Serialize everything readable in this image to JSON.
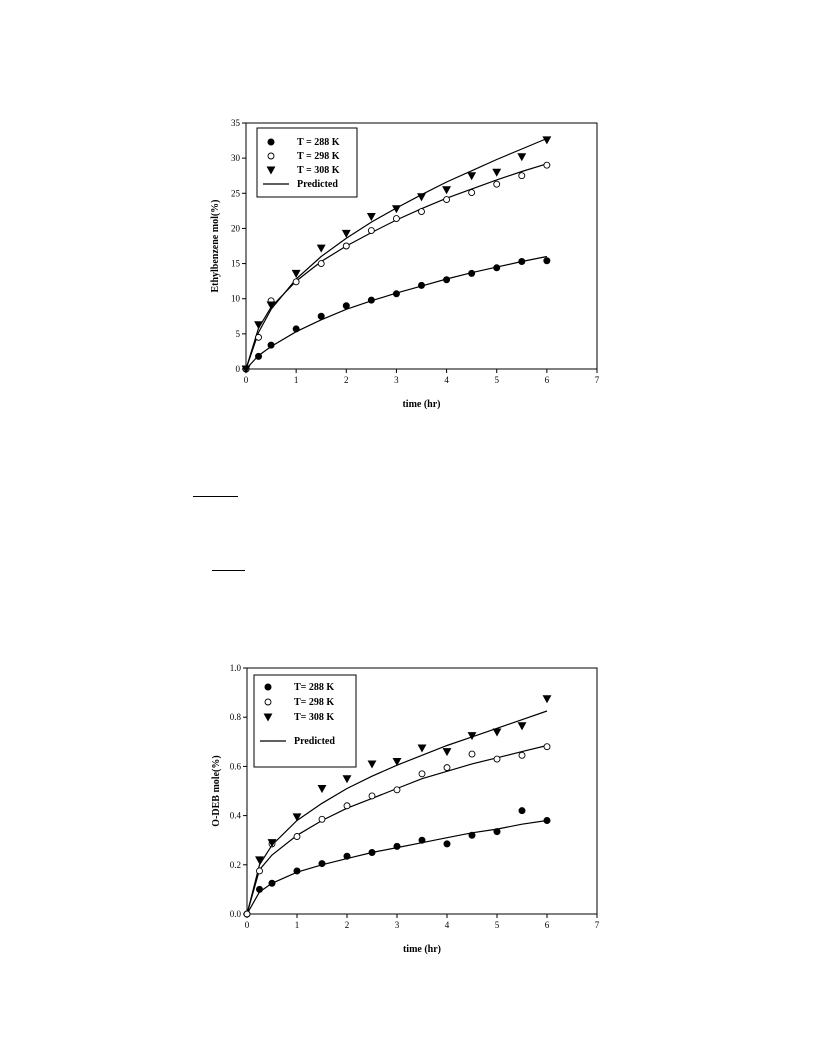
{
  "chart_data": [
    {
      "type": "scatter",
      "xlabel": "time (hr)",
      "ylabel": "Ethylbenzene mol(%)",
      "xlim": [
        0,
        7
      ],
      "ylim": [
        0,
        35
      ],
      "xticks": [
        "0",
        "1",
        "2",
        "3",
        "4",
        "5",
        "6",
        "7"
      ],
      "yticks": [
        "0",
        "5",
        "10",
        "15",
        "20",
        "25",
        "30",
        "35"
      ],
      "legend_position": "top-left",
      "series": [
        {
          "name": "T = 288 K",
          "marker": "filled-circle",
          "x": [
            0,
            0.25,
            0.5,
            1,
            1.5,
            2,
            2.5,
            3,
            3.5,
            4,
            4.5,
            5,
            5.5,
            6
          ],
          "y": [
            0,
            1.8,
            3.4,
            5.7,
            7.5,
            9.0,
            9.8,
            10.7,
            11.9,
            12.7,
            13.6,
            14.4,
            15.3,
            15.4
          ],
          "predicted_y": [
            0,
            1.9,
            3.2,
            5.3,
            7.0,
            8.5,
            9.7,
            10.8,
            11.8,
            12.8,
            13.7,
            14.5,
            15.3,
            16.0
          ]
        },
        {
          "name": "T = 298 K",
          "marker": "open-circle",
          "x": [
            0,
            0.25,
            0.5,
            1,
            1.5,
            2,
            2.5,
            3,
            3.5,
            4,
            4.5,
            5,
            5.5,
            6
          ],
          "y": [
            0,
            4.5,
            9.7,
            12.4,
            15.0,
            17.5,
            19.7,
            21.4,
            22.4,
            24.1,
            25.1,
            26.3,
            27.5,
            29.0
          ],
          "predicted_y": [
            0,
            5.8,
            8.8,
            12.5,
            15.3,
            17.5,
            19.4,
            21.2,
            22.8,
            24.3,
            25.6,
            26.9,
            28.1,
            29.2
          ]
        },
        {
          "name": "T = 308 K",
          "marker": "filled-triangle-down",
          "x": [
            0,
            0.25,
            0.5,
            1,
            1.5,
            2,
            2.5,
            3,
            3.5,
            4,
            4.5,
            5,
            5.5,
            6
          ],
          "y": [
            0,
            6.3,
            9.1,
            13.6,
            17.2,
            19.3,
            21.7,
            22.8,
            24.5,
            25.5,
            27.5,
            28.0,
            30.2,
            32.6
          ],
          "predicted_y": [
            0,
            5.2,
            8.5,
            12.8,
            16.0,
            18.6,
            20.9,
            22.9,
            24.8,
            26.6,
            28.2,
            29.8,
            31.3,
            32.8
          ]
        }
      ],
      "legend_extra": "Predicted"
    },
    {
      "type": "scatter",
      "xlabel": "time (hr)",
      "ylabel": "O-DEB mole(%)",
      "xlim": [
        0,
        7
      ],
      "ylim": [
        0,
        1.0
      ],
      "xticks": [
        "0",
        "1",
        "2",
        "3",
        "4",
        "5",
        "6",
        "7"
      ],
      "yticks": [
        "0.0",
        "0.2",
        "0.4",
        "0.6",
        "0.8",
        "1.0"
      ],
      "legend_position": "top-left",
      "series": [
        {
          "name": "T= 288 K",
          "marker": "filled-circle",
          "x": [
            0,
            0.25,
            0.5,
            1,
            1.5,
            2,
            2.5,
            3,
            3.5,
            4,
            4.5,
            5,
            5.5,
            6
          ],
          "y": [
            0,
            0.1,
            0.125,
            0.175,
            0.205,
            0.235,
            0.25,
            0.275,
            0.3,
            0.285,
            0.32,
            0.335,
            0.42,
            0.38
          ],
          "predicted_y": [
            0,
            0.09,
            0.125,
            0.17,
            0.2,
            0.225,
            0.25,
            0.27,
            0.29,
            0.31,
            0.33,
            0.345,
            0.365,
            0.38
          ]
        },
        {
          "name": "T= 298 K",
          "marker": "open-circle",
          "x": [
            0,
            0.25,
            0.5,
            1,
            1.5,
            2,
            2.5,
            3,
            3.5,
            4,
            4.5,
            5,
            5.5,
            6
          ],
          "y": [
            0,
            0.175,
            0.285,
            0.315,
            0.385,
            0.44,
            0.48,
            0.505,
            0.57,
            0.595,
            0.65,
            0.63,
            0.645,
            0.68
          ],
          "predicted_y": [
            0,
            0.18,
            0.24,
            0.32,
            0.38,
            0.43,
            0.47,
            0.51,
            0.55,
            0.58,
            0.61,
            0.635,
            0.66,
            0.685
          ]
        },
        {
          "name": "T= 308 K",
          "marker": "filled-triangle-down",
          "x": [
            0.25,
            0.5,
            1,
            1.5,
            2,
            2.5,
            3,
            3.5,
            4,
            4.5,
            5,
            5.5,
            6
          ],
          "y": [
            0.22,
            0.29,
            0.395,
            0.51,
            0.55,
            0.61,
            0.62,
            0.675,
            0.66,
            0.725,
            0.74,
            0.765,
            0.875
          ],
          "predicted_y_curve": [
            [
              0,
              0
            ],
            [
              0.25,
              0.2
            ],
            [
              0.5,
              0.28
            ],
            [
              1,
              0.38
            ],
            [
              1.5,
              0.45
            ],
            [
              2,
              0.51
            ],
            [
              2.5,
              0.56
            ],
            [
              3,
              0.605
            ],
            [
              3.5,
              0.645
            ],
            [
              4,
              0.685
            ],
            [
              4.5,
              0.72
            ],
            [
              5,
              0.755
            ],
            [
              5.5,
              0.79
            ],
            [
              6,
              0.825
            ]
          ]
        }
      ],
      "legend_extra": "Predicted"
    }
  ]
}
